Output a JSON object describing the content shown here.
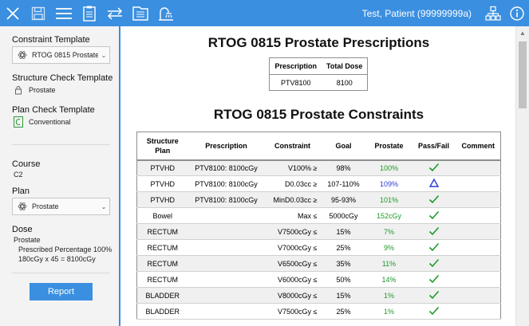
{
  "toolbar": {
    "patient": "Test, Patient (99999999a)",
    "icons": [
      "close-icon",
      "save-icon",
      "menu-icon",
      "clipboard-icon",
      "swap-arrows-icon",
      "document-list-icon",
      "shower-icon",
      "hierarchy-icon",
      "info-icon"
    ]
  },
  "sidebar": {
    "constraint_template_label": "Constraint Template",
    "constraint_template_value": "RTOG 0815 Prostate",
    "structure_check_label": "Structure Check Template",
    "structure_check_value": "Prostate",
    "plan_check_label": "Plan Check Template",
    "plan_check_value": "Conventional",
    "course_label": "Course",
    "course_value": "C2",
    "plan_label": "Plan",
    "plan_value": "Prostate",
    "dose_label": "Dose",
    "dose_name": "Prostate",
    "dose_line1": "Prescribed Percentage 100%",
    "dose_line2": "180cGy x 45 = 8100cGy",
    "report_button": "Report"
  },
  "main": {
    "prescriptions_title": "RTOG 0815 Prostate Prescriptions",
    "prescriptions_headers": [
      "Prescription",
      "Total Dose"
    ],
    "prescriptions_rows": [
      {
        "prescription": "PTV8100",
        "total": "8100"
      }
    ],
    "constraints_title": "RTOG 0815 Prostate Constraints",
    "constraints_headers": {
      "structure_line1": "Structure",
      "structure_line2": "Plan",
      "prescription": "Prescription",
      "constraint": "Constraint",
      "goal": "Goal",
      "prostate": "Prostate",
      "passfail": "Pass/Fail",
      "comment": "Comment"
    },
    "constraints_rows": [
      {
        "structure": "PTVHD",
        "prescription": "PTV8100: 8100cGy",
        "constraint": "V100% ≥",
        "goal": "98%",
        "value": "100%",
        "status": "pass"
      },
      {
        "structure": "PTVHD",
        "prescription": "PTV8100: 8100cGy",
        "constraint": "D0.03cc ≥",
        "goal": "107-110%",
        "value": "109%",
        "status": "warn"
      },
      {
        "structure": "PTVHD",
        "prescription": "PTV8100: 8100cGy",
        "constraint": "MinD0.03cc ≥",
        "goal": "95-93%",
        "value": "101%",
        "status": "pass"
      },
      {
        "structure": "Bowel",
        "prescription": "",
        "constraint": "Max ≤",
        "goal": "5000cGy",
        "value": "152cGy",
        "status": "pass"
      },
      {
        "structure": "RECTUM",
        "prescription": "",
        "constraint": "V7500cGy ≤",
        "goal": "15%",
        "value": "7%",
        "status": "pass"
      },
      {
        "structure": "RECTUM",
        "prescription": "",
        "constraint": "V7000cGy ≤",
        "goal": "25%",
        "value": "9%",
        "status": "pass"
      },
      {
        "structure": "RECTUM",
        "prescription": "",
        "constraint": "V6500cGy ≤",
        "goal": "35%",
        "value": "11%",
        "status": "pass"
      },
      {
        "structure": "RECTUM",
        "prescription": "",
        "constraint": "V6000cGy ≤",
        "goal": "50%",
        "value": "14%",
        "status": "pass"
      },
      {
        "structure": "BLADDER",
        "prescription": "",
        "constraint": "V8000cGy ≤",
        "goal": "15%",
        "value": "1%",
        "status": "pass"
      },
      {
        "structure": "BLADDER",
        "prescription": "",
        "constraint": "V7500cGy ≤",
        "goal": "25%",
        "value": "1%",
        "status": "pass"
      }
    ]
  },
  "colors": {
    "accent": "#3a8fe0",
    "pass": "#1e9a2a",
    "warn": "#2a3ad6"
  }
}
